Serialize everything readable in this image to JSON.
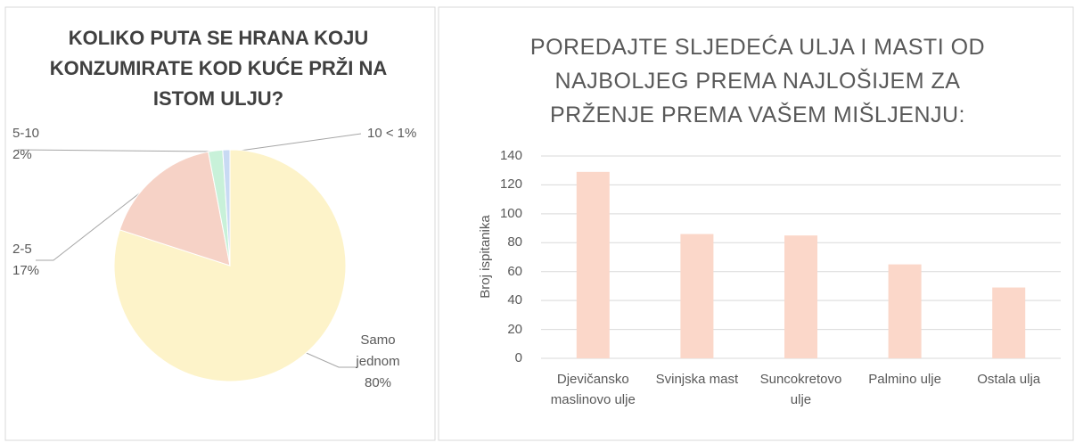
{
  "chart_data": [
    {
      "type": "pie",
      "title": "KOLIKO PUTA SE HRANA KOJU KONZUMIRATE KOD KUĆE PRŽI NA ISTOM ULJU?",
      "categories": [
        "Samo jednom",
        "2-5",
        "5-10",
        "10 <"
      ],
      "values": [
        80,
        17,
        2,
        1
      ],
      "value_labels": [
        "80%",
        "17%",
        "2%",
        "1%"
      ],
      "colors": [
        "#fdf3c9",
        "#f6d2c6",
        "#c8f1d9",
        "#c8daf3"
      ]
    },
    {
      "type": "bar",
      "title": "POREDAJTE SLJEDEĆA ULJA I MASTI OD NAJBOLJEG PREMA NAJLOŠIJEM ZA PRŽENJE PREMA VAŠEM MIŠLJENJU:",
      "ylabel": "Broj ispitanika",
      "categories": [
        "Djevičansko maslinovo ulje",
        "Svinjska mast",
        "Suncokretovo ulje",
        "Palmino ulje",
        "Ostala ulja"
      ],
      "values": [
        129,
        86,
        85,
        65,
        49
      ],
      "color": "#fbd7c9",
      "ylim": [
        0,
        140
      ],
      "yticks": [
        0,
        20,
        40,
        60,
        80,
        100,
        120,
        140
      ],
      "grid": true
    }
  ]
}
